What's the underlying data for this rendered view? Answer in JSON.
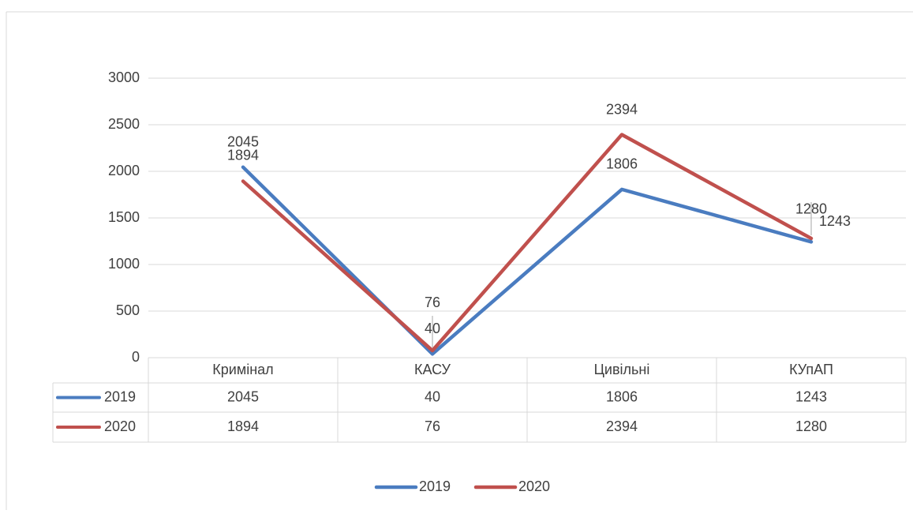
{
  "chart_data": {
    "type": "line",
    "categories": [
      "Кримінал",
      "КАСУ",
      "Цивільні",
      "КУпАП"
    ],
    "series": [
      {
        "name": "2019",
        "color": "#4a7cc0",
        "values": [
          2045,
          40,
          1806,
          1243
        ]
      },
      {
        "name": "2020",
        "color": "#c0504d",
        "values": [
          1894,
          76,
          2394,
          1280
        ]
      }
    ],
    "ylim": [
      0,
      3000
    ],
    "yticks": [
      0,
      500,
      1000,
      1500,
      2000,
      2500,
      3000
    ],
    "grid": true,
    "legend": "bottom",
    "data_table": true
  }
}
